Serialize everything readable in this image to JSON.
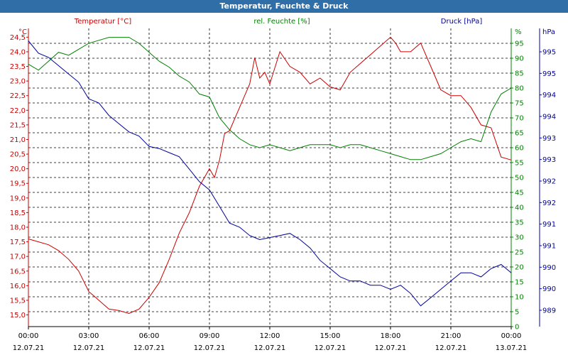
{
  "window": {
    "title": "Temperatur, Feuchte & Druck"
  },
  "chart_data": {
    "type": "line",
    "title": "Temperatur, Feuchte & Druck",
    "x_ticks": [
      "00:00",
      "03:00",
      "06:00",
      "09:00",
      "12:00",
      "15:00",
      "18:00",
      "21:00",
      "00:00"
    ],
    "x_dates": [
      "12.07.21",
      "12.07.21",
      "12.07.21",
      "12.07.21",
      "12.07.21",
      "12.07.21",
      "12.07.21",
      "12.07.21",
      "13.07.21"
    ],
    "xlim": [
      0,
      24
    ],
    "grid": true,
    "axes": {
      "temperature": {
        "label": "Temperatur [°C]",
        "unit": "°C",
        "ylim": [
          14.6,
          24.8
        ],
        "ticks": [
          "15,0",
          "15,5",
          "16,0",
          "16,5",
          "17,0",
          "17,5",
          "18,0",
          "18,5",
          "19,0",
          "19,5",
          "20,0",
          "20,5",
          "21,0",
          "21,5",
          "22,0",
          "22,5",
          "23,0",
          "23,5",
          "24,0",
          "24,5"
        ],
        "color": "#cc0000"
      },
      "humidity": {
        "label": "rel. Feuchte [%]",
        "unit": "%",
        "ylim": [
          0,
          100
        ],
        "ticks": [
          "0",
          "5",
          "10",
          "15",
          "20",
          "25",
          "30",
          "35",
          "40",
          "45",
          "50",
          "55",
          "60",
          "65",
          "70",
          "75",
          "80",
          "85",
          "90",
          "95"
        ],
        "color": "#008000"
      },
      "pressure": {
        "label": "Druck [hPa]",
        "unit": "hPa",
        "ylim": [
          988.7,
          995.9
        ],
        "ticks": [
          "989",
          "990",
          "990",
          "991",
          "991",
          "992",
          "992",
          "993",
          "993",
          "994",
          "994",
          "995",
          "995"
        ],
        "color": "#000099"
      }
    },
    "series": [
      {
        "name": "Temperatur [°C]",
        "axis": "temperature",
        "color": "#cc0000",
        "x": [
          0,
          0.5,
          1,
          1.5,
          2,
          2.5,
          3,
          3.5,
          4,
          4.5,
          5,
          5.5,
          6,
          6.5,
          7,
          7.5,
          8,
          8.5,
          9,
          9.25,
          9.5,
          9.75,
          10,
          10.5,
          11,
          11.25,
          11.5,
          11.75,
          12,
          12.5,
          13,
          13.5,
          14,
          14.5,
          15,
          15.5,
          16,
          16.5,
          17,
          17.5,
          18,
          18.25,
          18.5,
          19,
          19.5,
          20,
          20.5,
          21,
          21.5,
          22,
          22.5,
          23,
          23.5,
          24
        ],
        "y": [
          17.6,
          17.5,
          17.4,
          17.2,
          16.9,
          16.5,
          15.8,
          15.5,
          15.2,
          15.15,
          15.05,
          15.2,
          15.6,
          16.1,
          16.9,
          17.8,
          18.5,
          19.4,
          20.0,
          19.7,
          20.3,
          21.2,
          21.3,
          22.1,
          22.9,
          23.8,
          23.1,
          23.3,
          22.9,
          24.0,
          23.5,
          23.3,
          22.9,
          23.1,
          22.8,
          22.7,
          23.3,
          23.6,
          23.9,
          24.2,
          24.5,
          24.3,
          24.0,
          24.0,
          24.3,
          23.5,
          22.7,
          22.5,
          22.5,
          22.1,
          21.5,
          21.4,
          20.4,
          20.3
        ]
      },
      {
        "name": "rel. Feuchte [%]",
        "axis": "humidity",
        "color": "#008000",
        "x": [
          0,
          0.5,
          1,
          1.5,
          2,
          2.5,
          3,
          3.5,
          4,
          4.5,
          5,
          5.5,
          6,
          6.5,
          7,
          7.5,
          8,
          8.5,
          9,
          9.5,
          10,
          10.5,
          11,
          11.5,
          12,
          12.5,
          13,
          13.5,
          14,
          14.5,
          15,
          15.5,
          16,
          16.5,
          17,
          17.5,
          18,
          18.5,
          19,
          19.5,
          20,
          20.5,
          21,
          21.5,
          22,
          22.5,
          23,
          23.5,
          24
        ],
        "y": [
          88,
          86,
          89,
          92,
          91,
          93,
          95,
          96,
          97,
          97,
          97,
          95,
          92,
          89,
          87,
          84,
          82,
          78,
          77,
          70,
          66,
          63,
          61,
          60,
          61,
          60,
          59,
          60,
          61,
          61,
          61,
          60,
          61,
          61,
          60,
          59,
          58,
          57,
          56,
          56,
          57,
          58,
          60,
          62,
          63,
          62,
          72,
          78,
          80
        ]
      },
      {
        "name": "Druck [hPa]",
        "axis": "pressure",
        "color": "#000099",
        "x": [
          0,
          0.5,
          1,
          1.5,
          2,
          2.5,
          3,
          3.5,
          4,
          4.5,
          5,
          5.5,
          6,
          6.5,
          7,
          7.5,
          8,
          8.5,
          9,
          9.5,
          10,
          10.5,
          11,
          11.5,
          12,
          12.5,
          13,
          13.5,
          14,
          14.5,
          15,
          15.5,
          16,
          16.5,
          17,
          17.5,
          18,
          18.5,
          19,
          19.5,
          20,
          20.5,
          21,
          21.5,
          22,
          22.5,
          23,
          23.5,
          24
        ],
        "y": [
          995.6,
          995.3,
          995.2,
          995.0,
          994.8,
          994.6,
          994.2,
          994.1,
          993.8,
          993.6,
          993.4,
          993.3,
          993.05,
          993.0,
          992.9,
          992.8,
          992.5,
          992.2,
          992.0,
          991.6,
          991.2,
          991.1,
          990.9,
          990.8,
          990.85,
          990.9,
          990.95,
          990.8,
          990.6,
          990.3,
          990.1,
          989.9,
          989.8,
          989.8,
          989.7,
          989.7,
          989.6,
          989.7,
          989.5,
          989.2,
          989.4,
          989.6,
          989.8,
          990.0,
          990.0,
          989.9,
          990.1,
          990.2,
          990.0
        ]
      }
    ]
  }
}
